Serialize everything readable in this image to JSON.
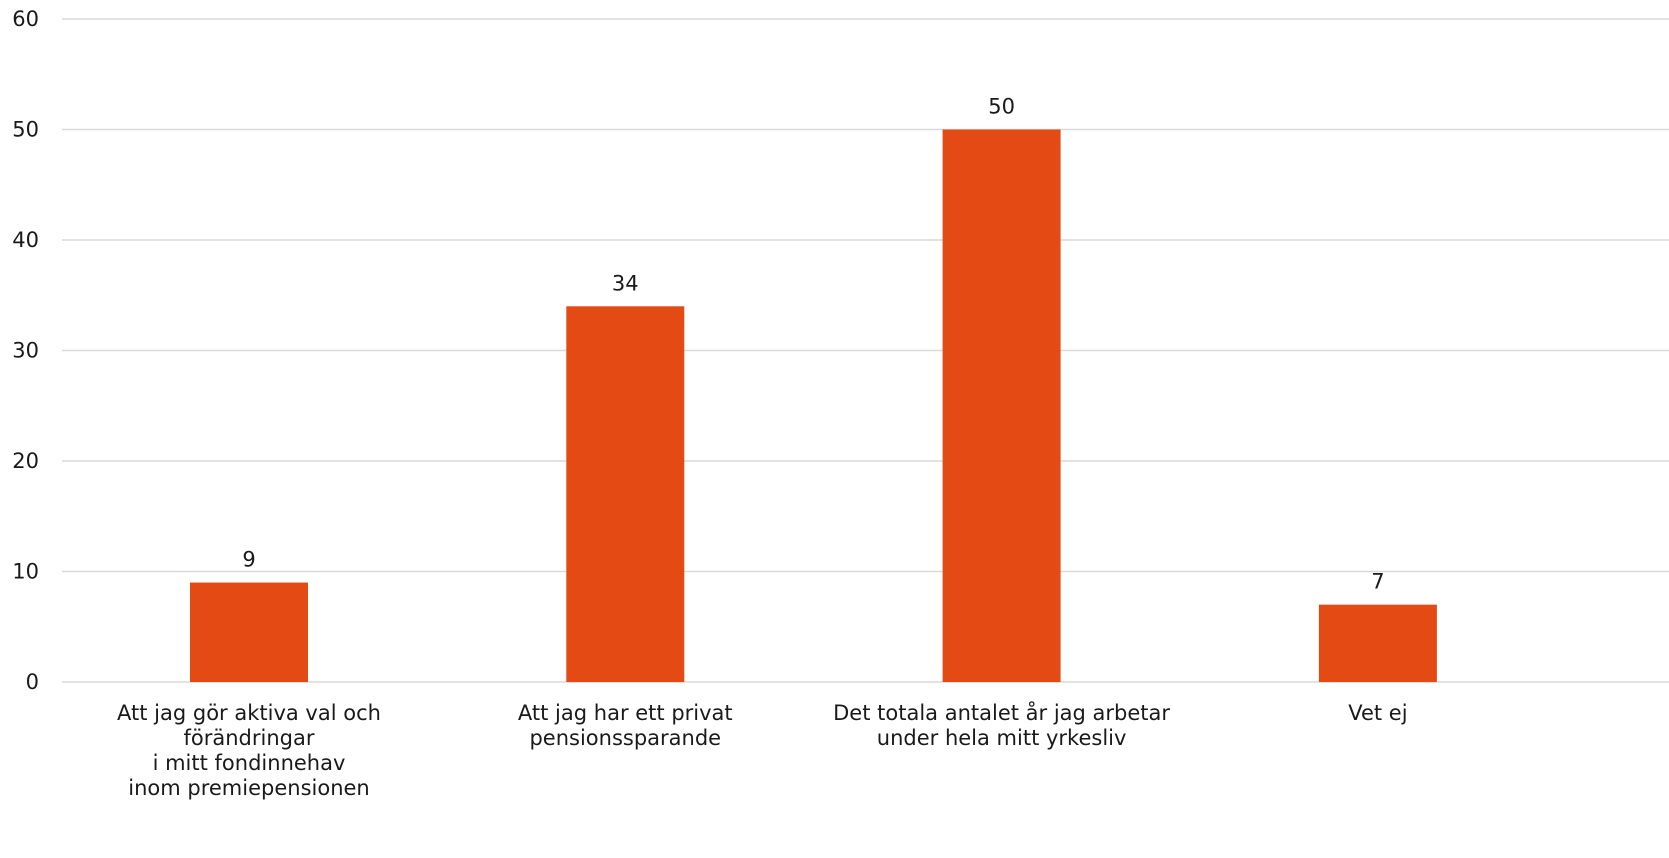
{
  "chart_data": {
    "type": "bar",
    "categories": [
      "Att jag gör aktiva val och\nförändringar\ni mitt fondinnehav\ninom premiepensionen",
      "Att jag har ett privat\npensionssparande",
      "Det totala antalet år jag arbetar\nunder hela mitt yrkesliv",
      "Vet ej"
    ],
    "values": [
      9,
      34,
      50,
      7
    ],
    "data_labels": [
      "9",
      "34",
      "50",
      "7"
    ],
    "ylim": [
      0,
      60
    ],
    "yticks": [
      "0",
      "10",
      "20",
      "30",
      "40",
      "50",
      "60"
    ],
    "title": "",
    "xlabel": "",
    "ylabel": "",
    "grid": true,
    "legend": "none",
    "bar_color": "#E34A14",
    "grid_color": "#D9D9D9"
  }
}
